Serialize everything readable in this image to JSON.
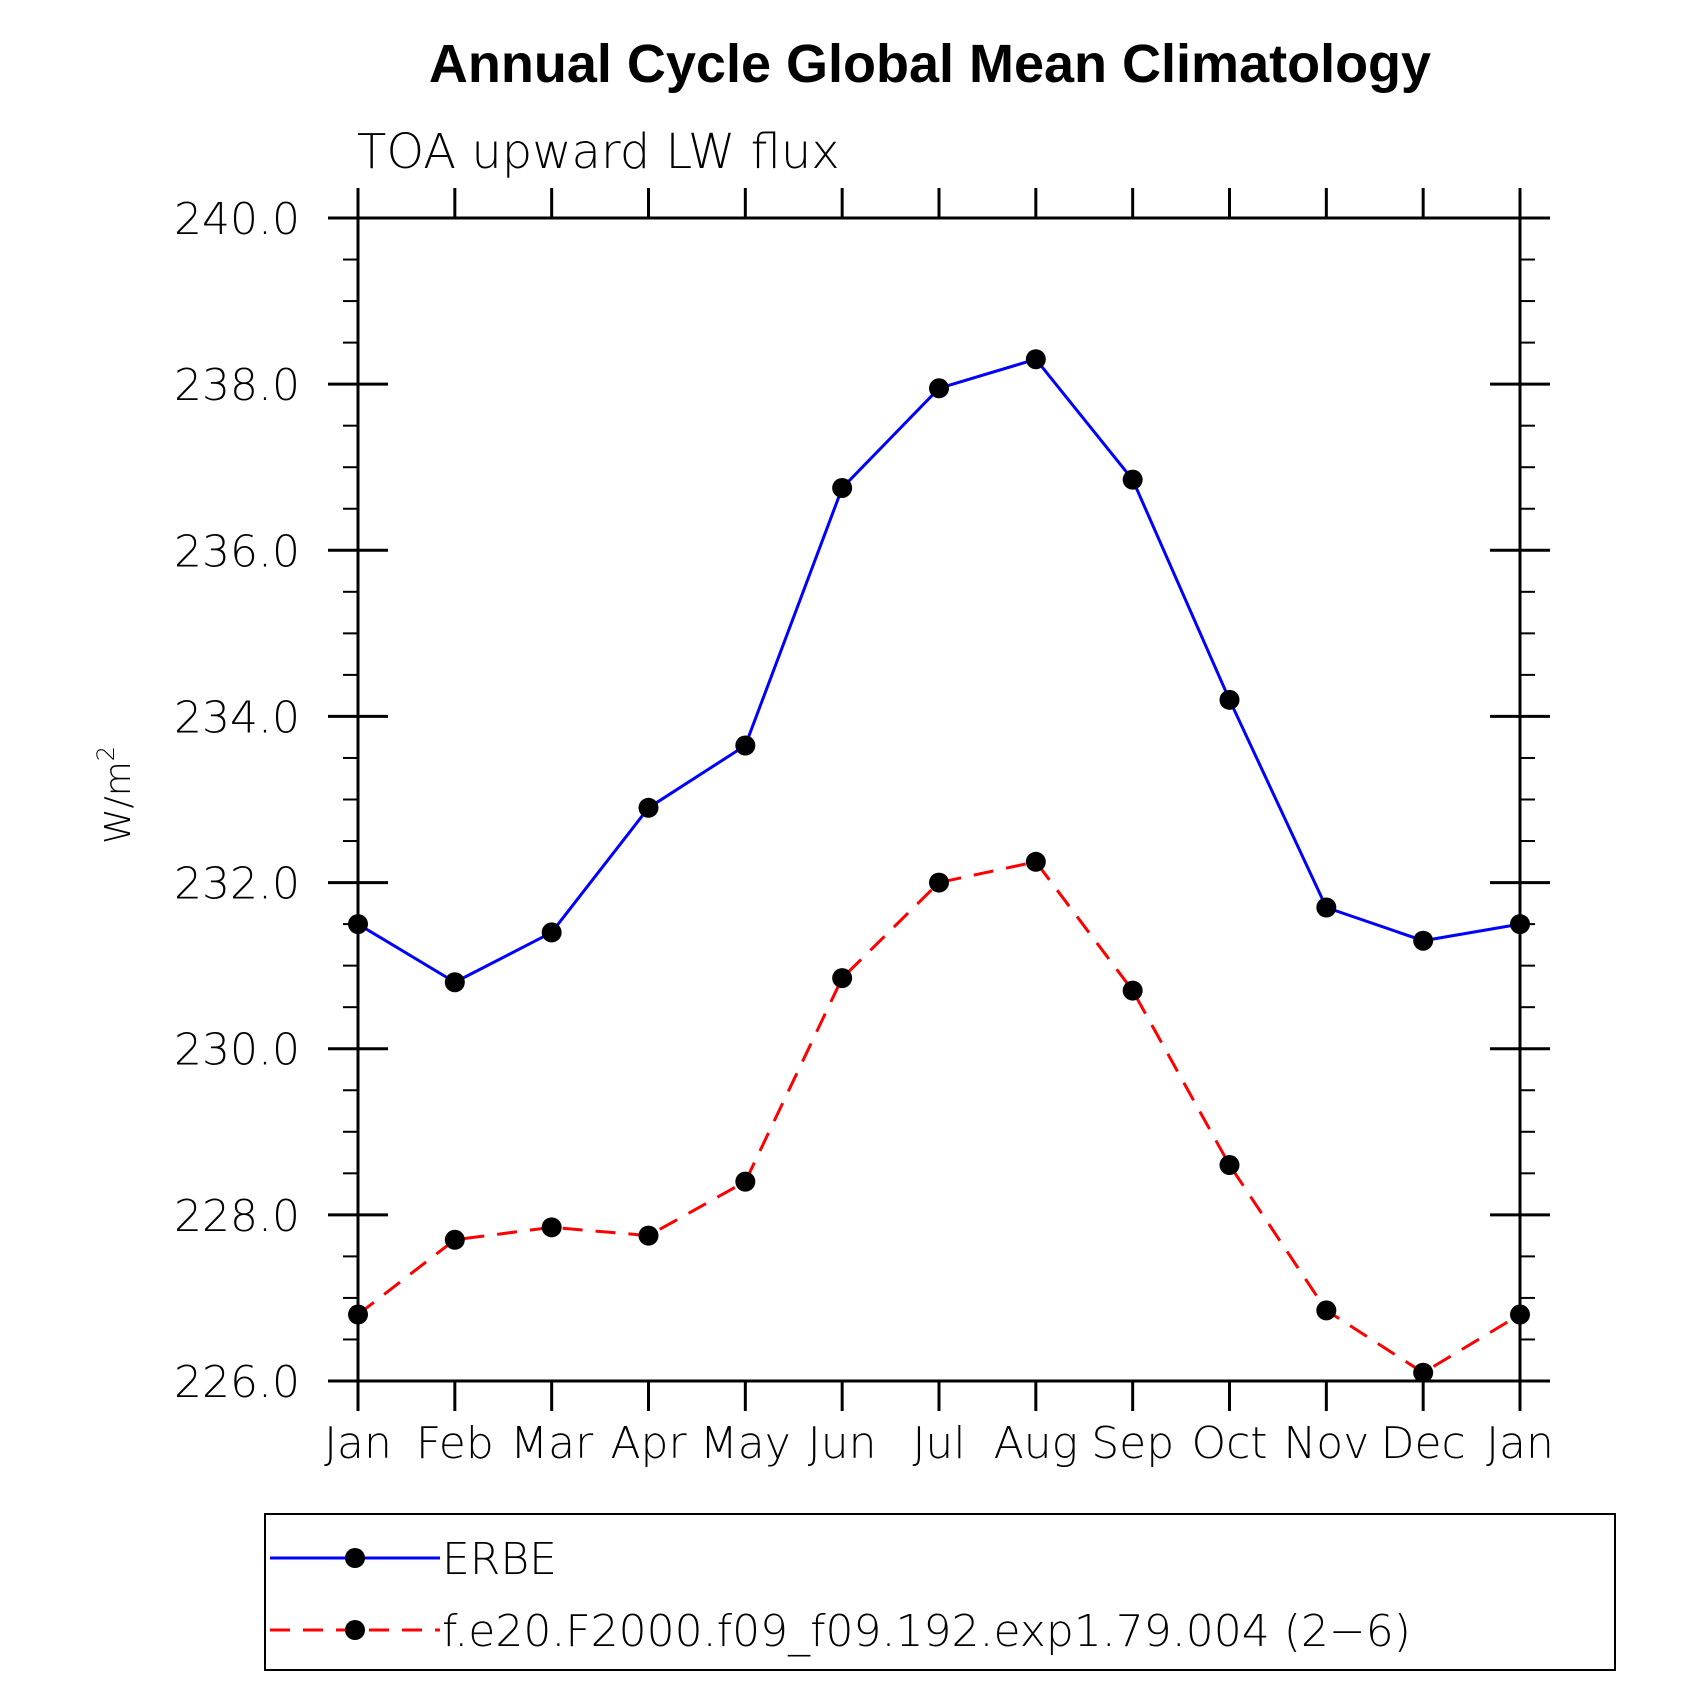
{
  "chart_data": {
    "type": "line",
    "title": "Annual Cycle Global Mean Climatology",
    "subtitle": "TOA upward LW flux",
    "ylabel": "W/m",
    "ylabel_superscript": "2",
    "xlabel": "",
    "categories": [
      "Jan",
      "Feb",
      "Mar",
      "Apr",
      "May",
      "Jun",
      "Jul",
      "Aug",
      "Sep",
      "Oct",
      "Nov",
      "Dec",
      "Jan"
    ],
    "ylim": [
      226.0,
      240.0
    ],
    "y_major_ticks": [
      226.0,
      228.0,
      230.0,
      232.0,
      234.0,
      236.0,
      238.0,
      240.0
    ],
    "y_tick_labels": [
      "226.0",
      "228.0",
      "230.0",
      "232.0",
      "234.0",
      "236.0",
      "238.0",
      "240.0"
    ],
    "y_minor_step": 0.5,
    "grid": false,
    "legend_position": "bottom",
    "series": [
      {
        "name": "ERBE",
        "color": "#0000ff",
        "line_style": "solid",
        "marker": "filled-circle",
        "values": [
          231.5,
          230.8,
          231.4,
          232.9,
          233.65,
          236.75,
          237.95,
          238.3,
          236.85,
          234.2,
          231.7,
          231.3,
          231.5
        ]
      },
      {
        "name": "f.e20.F2000.f09_f09.192.exp1.79.004 (2−6)",
        "color": "#ff0000",
        "line_style": "dashed",
        "marker": "filled-circle",
        "values": [
          226.8,
          227.7,
          227.85,
          227.75,
          228.4,
          230.85,
          232.0,
          232.25,
          230.7,
          228.6,
          226.85,
          226.1,
          226.8
        ]
      }
    ]
  }
}
